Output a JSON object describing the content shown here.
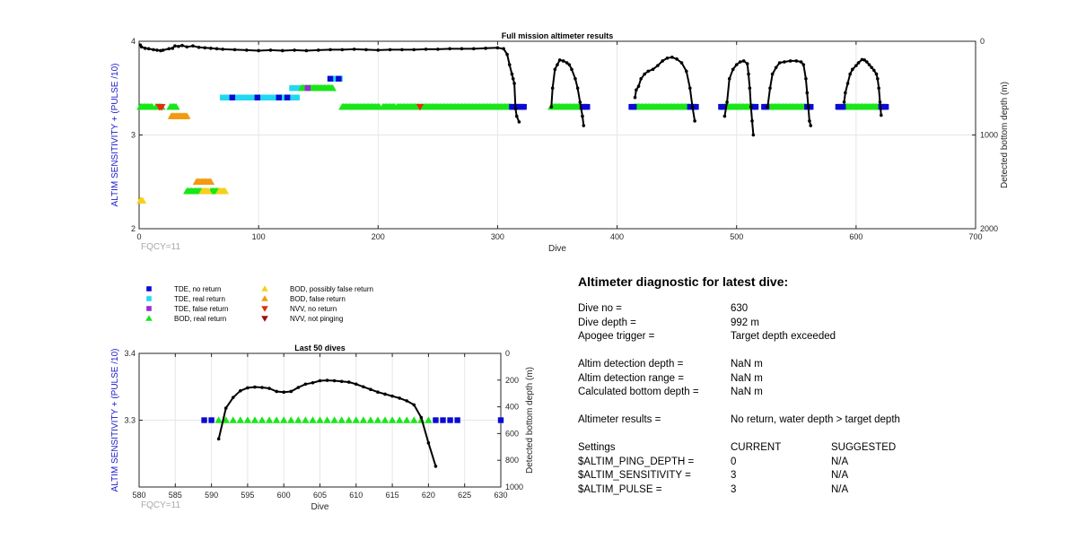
{
  "chart_data": [
    {
      "id": "full",
      "type": "scatter",
      "title": "Full mission altimeter results",
      "xlabel": "Dive",
      "ylabel": "ALTIM SENSITIVITY + (PULSE /10)",
      "y2label": "Detected bottom depth (m)",
      "xlim": [
        0,
        700
      ],
      "ylim": [
        2,
        4
      ],
      "y2lim": [
        0,
        2000
      ],
      "y2_reversed": true,
      "xticks": [
        0,
        100,
        200,
        300,
        400,
        500,
        600,
        700
      ],
      "yticks": [
        2,
        3,
        4
      ],
      "y2ticks": [
        0,
        1000,
        2000
      ],
      "grid": true,
      "annotation": "FQCY=11",
      "markers": [
        {
          "class": "bod_real",
          "y": 3.3,
          "ranges": [
            [
              1,
              11
            ],
            [
              14,
              19
            ],
            [
              26,
              31
            ],
            [
              170,
              201
            ],
            [
              204,
              214
            ],
            [
              216,
              311
            ],
            [
              345,
              370
            ],
            [
              415,
              460
            ],
            [
              490,
              514
            ],
            [
              526,
              558
            ],
            [
              590,
              620
            ]
          ]
        },
        {
          "class": "tde_no_return",
          "y": 3.3,
          "ranges": [
            [
              312,
              322
            ],
            [
              371,
              375
            ],
            [
              412,
              414
            ],
            [
              461,
              466
            ],
            [
              487,
              489
            ],
            [
              515,
              516
            ],
            [
              523,
              525
            ],
            [
              559,
              562
            ],
            [
              585,
              589
            ],
            [
              621,
              625
            ]
          ]
        },
        {
          "class": "nvv_no_return",
          "y": 3.3,
          "x": [
            17,
            18,
            19,
            235
          ]
        },
        {
          "class": "tde_real",
          "y": 3.4,
          "ranges": [
            [
              70,
              132
            ]
          ]
        },
        {
          "class": "tde_no_return",
          "y": 3.4,
          "x": [
            78,
            99,
            117,
            124
          ]
        },
        {
          "class": "tde_real",
          "y": 3.5,
          "ranges": [
            [
              128,
              135
            ]
          ]
        },
        {
          "class": "bod_real",
          "y": 3.5,
          "ranges": [
            [
              136,
              162
            ]
          ]
        },
        {
          "class": "tde_false",
          "y": 3.5,
          "x": [
            141
          ]
        },
        {
          "class": "tde_real",
          "y": 3.6,
          "ranges": [
            [
              160,
              168
            ]
          ]
        },
        {
          "class": "tde_no_return",
          "y": 3.6,
          "x": [
            160,
            167
          ]
        },
        {
          "class": "bod_false",
          "y": 3.2,
          "ranges": [
            [
              27,
              40
            ]
          ]
        },
        {
          "class": "bod_false",
          "y": 2.5,
          "ranges": [
            [
              48,
              60
            ]
          ]
        },
        {
          "class": "bod_real",
          "y": 2.4,
          "ranges": [
            [
              40,
              52
            ],
            [
              60,
              67
            ]
          ]
        },
        {
          "class": "bod_possibly_false",
          "y": 2.4,
          "ranges": [
            [
              53,
              58
            ],
            [
              67,
              72
            ]
          ]
        },
        {
          "class": "bod_possibly_false",
          "y": 2.3,
          "x": [
            1,
            2,
            3
          ]
        }
      ],
      "depth_profile": [
        [
          [
            1,
            40
          ],
          [
            2,
            60
          ],
          [
            5,
            75
          ],
          [
            8,
            80
          ],
          [
            12,
            90
          ],
          [
            15,
            95
          ],
          [
            18,
            100
          ],
          [
            20,
            95
          ],
          [
            25,
            80
          ],
          [
            28,
            75
          ],
          [
            30,
            50
          ],
          [
            33,
            55
          ],
          [
            36,
            45
          ],
          [
            40,
            60
          ],
          [
            45,
            50
          ],
          [
            50,
            65
          ],
          [
            55,
            70
          ],
          [
            60,
            75
          ],
          [
            65,
            80
          ],
          [
            70,
            85
          ],
          [
            80,
            90
          ],
          [
            90,
            95
          ],
          [
            100,
            100
          ],
          [
            110,
            95
          ],
          [
            120,
            100
          ],
          [
            130,
            95
          ],
          [
            140,
            100
          ],
          [
            150,
            95
          ],
          [
            160,
            90
          ],
          [
            170,
            90
          ],
          [
            180,
            85
          ],
          [
            190,
            90
          ],
          [
            200,
            95
          ],
          [
            210,
            90
          ],
          [
            220,
            90
          ],
          [
            230,
            90
          ],
          [
            240,
            85
          ],
          [
            250,
            85
          ],
          [
            260,
            80
          ],
          [
            270,
            80
          ],
          [
            280,
            80
          ],
          [
            290,
            75
          ],
          [
            300,
            70
          ],
          [
            305,
            80
          ],
          [
            308,
            140
          ],
          [
            310,
            250
          ],
          [
            312,
            350
          ],
          [
            313,
            400
          ],
          [
            314,
            450
          ],
          [
            315,
            720
          ],
          [
            316,
            800
          ],
          [
            318,
            860
          ]
        ],
        [
          [
            345,
            700
          ],
          [
            346,
            500
          ],
          [
            348,
            300
          ],
          [
            350,
            250
          ],
          [
            352,
            200
          ],
          [
            355,
            210
          ],
          [
            358,
            230
          ],
          [
            360,
            250
          ],
          [
            362,
            300
          ],
          [
            365,
            400
          ],
          [
            367,
            500
          ],
          [
            369,
            650
          ],
          [
            371,
            800
          ],
          [
            372,
            900
          ]
        ],
        [
          [
            415,
            600
          ],
          [
            416,
            520
          ],
          [
            418,
            480
          ],
          [
            420,
            400
          ],
          [
            423,
            350
          ],
          [
            426,
            320
          ],
          [
            430,
            300
          ],
          [
            434,
            260
          ],
          [
            438,
            210
          ],
          [
            442,
            180
          ],
          [
            446,
            170
          ],
          [
            450,
            190
          ],
          [
            454,
            230
          ],
          [
            458,
            320
          ],
          [
            461,
            500
          ],
          [
            463,
            700
          ],
          [
            465,
            850
          ]
        ],
        [
          [
            490,
            800
          ],
          [
            492,
            650
          ],
          [
            494,
            400
          ],
          [
            497,
            300
          ],
          [
            500,
            250
          ],
          [
            503,
            220
          ],
          [
            506,
            210
          ],
          [
            509,
            240
          ],
          [
            510,
            350
          ],
          [
            511,
            500
          ],
          [
            512,
            700
          ],
          [
            513,
            850
          ],
          [
            514,
            1000
          ]
        ],
        [
          [
            526,
            700
          ],
          [
            528,
            500
          ],
          [
            530,
            350
          ],
          [
            533,
            280
          ],
          [
            536,
            230
          ],
          [
            540,
            220
          ],
          [
            545,
            210
          ],
          [
            550,
            210
          ],
          [
            554,
            220
          ],
          [
            556,
            250
          ],
          [
            558,
            400
          ],
          [
            559,
            550
          ],
          [
            560,
            700
          ],
          [
            561,
            850
          ],
          [
            562,
            900
          ]
        ],
        [
          [
            590,
            650
          ],
          [
            591,
            550
          ],
          [
            593,
            450
          ],
          [
            595,
            350
          ],
          [
            597,
            300
          ],
          [
            600,
            260
          ],
          [
            602,
            230
          ],
          [
            605,
            195
          ],
          [
            607,
            200
          ],
          [
            609,
            220
          ],
          [
            611,
            250
          ],
          [
            613,
            280
          ],
          [
            615,
            310
          ],
          [
            617,
            350
          ],
          [
            618,
            400
          ],
          [
            619,
            500
          ],
          [
            620,
            650
          ],
          [
            621,
            790
          ]
        ]
      ]
    },
    {
      "id": "last50",
      "type": "scatter",
      "title": "Last 50 dives",
      "xlabel": "Dive",
      "ylabel": "ALTIM SENSITIVITY + (PULSE /10)",
      "y2label": "Detected bottom depth (m)",
      "xlim": [
        580,
        630
      ],
      "ylim": [
        3.2,
        3.4
      ],
      "y2lim": [
        0,
        1000
      ],
      "y2_reversed": true,
      "xticks": [
        580,
        585,
        590,
        595,
        600,
        605,
        610,
        615,
        620,
        625,
        630
      ],
      "yticks": [
        3.3,
        3.4
      ],
      "y2ticks": [
        0,
        200,
        400,
        600,
        800,
        1000
      ],
      "grid": true,
      "annotation": "FQCY=11",
      "markers": [
        {
          "class": "tde_no_return",
          "y": 3.3,
          "x": [
            589,
            590,
            621,
            622,
            623,
            624,
            630
          ]
        },
        {
          "class": "bod_real",
          "y": 3.3,
          "x": [
            591,
            592,
            593,
            594,
            595,
            596,
            597,
            598,
            599,
            600,
            601,
            602,
            603,
            604,
            605,
            606,
            607,
            608,
            609,
            610,
            611,
            612,
            613,
            614,
            615,
            616,
            617,
            618,
            619,
            620
          ]
        }
      ],
      "depth_profile": [
        [
          [
            591,
            640
          ],
          [
            592,
            410
          ],
          [
            593,
            330
          ],
          [
            594,
            280
          ],
          [
            595,
            258
          ],
          [
            596,
            252
          ],
          [
            597,
            255
          ],
          [
            598,
            262
          ],
          [
            599,
            285
          ],
          [
            600,
            290
          ],
          [
            601,
            285
          ],
          [
            602,
            255
          ],
          [
            603,
            230
          ],
          [
            604,
            220
          ],
          [
            605,
            205
          ],
          [
            606,
            202
          ],
          [
            607,
            205
          ],
          [
            608,
            210
          ],
          [
            609,
            215
          ],
          [
            610,
            230
          ],
          [
            611,
            250
          ],
          [
            612,
            270
          ],
          [
            613,
            290
          ],
          [
            614,
            305
          ],
          [
            615,
            320
          ],
          [
            616,
            335
          ],
          [
            617,
            355
          ],
          [
            618,
            385
          ],
          [
            619,
            480
          ],
          [
            620,
            670
          ],
          [
            621,
            845
          ]
        ]
      ]
    }
  ],
  "legend": {
    "items": [
      {
        "class": "tde_no_return",
        "label": "TDE, no return",
        "shape": "square",
        "color": "#0a0ad2"
      },
      {
        "class": "tde_real",
        "label": "TDE, real return",
        "shape": "square",
        "color": "#22d8f0"
      },
      {
        "class": "tde_false",
        "label": "TDE, false return",
        "shape": "square",
        "color": "#9a2ad8"
      },
      {
        "class": "bod_real",
        "label": "BOD, real return",
        "shape": "triangle-up",
        "color": "#19e619"
      },
      {
        "class": "bod_possibly_false",
        "label": "BOD, possibly false return",
        "shape": "triangle-up",
        "color": "#f4d21a"
      },
      {
        "class": "bod_false",
        "label": "BOD, false return",
        "shape": "triangle-up",
        "color": "#f29a10"
      },
      {
        "class": "nvv_no_return",
        "label": "NVV, no return",
        "shape": "triangle-down",
        "color": "#e62a10"
      },
      {
        "class": "nvv_not_pinging",
        "label": "NVV, not pinging",
        "shape": "triangle-down",
        "color": "#9a1010"
      }
    ]
  },
  "colors": {
    "axis_label": "#1a1acc",
    "annotation": "#a8a8a8",
    "profile": "#000000",
    "grid": "#e6e6e6"
  },
  "diagnostic": {
    "title": "Altimeter diagnostic for latest dive:",
    "rows": [
      {
        "label": "Dive no =",
        "value": "630"
      },
      {
        "label": "Dive depth =",
        "value": "992 m"
      },
      {
        "label": "Apogee trigger =",
        "value": "Target depth exceeded"
      },
      {
        "label": "Altim detection depth =",
        "value": "NaN m"
      },
      {
        "label": "Altim detection range =",
        "value": "NaN m"
      },
      {
        "label": "Calculated bottom depth =",
        "value": "NaN m"
      },
      {
        "label": "Altimeter results =",
        "value": "No return, water depth > target depth"
      }
    ],
    "settings": {
      "header": {
        "label": "Settings",
        "current": "CURRENT",
        "suggested": "SUGGESTED"
      },
      "rows": [
        {
          "label": "$ALTIM_PING_DEPTH =",
          "current": "0",
          "suggested": "N/A"
        },
        {
          "label": "$ALTIM_SENSITIVITY =",
          "current": "3",
          "suggested": "N/A"
        },
        {
          "label": "$ALTIM_PULSE =",
          "current": "3",
          "suggested": "N/A"
        }
      ]
    }
  }
}
